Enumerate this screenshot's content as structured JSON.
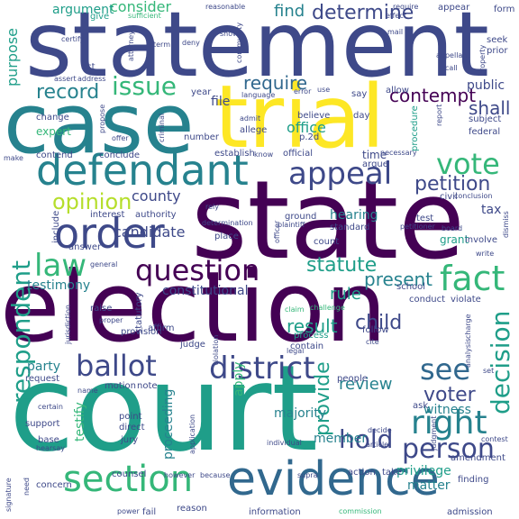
{
  "palette": {
    "dark_purple": "#440154",
    "indigo": "#3e4989",
    "blue": "#31688e",
    "teal": "#26828e",
    "green_teal": "#1f9e89",
    "green": "#35b779",
    "light_green": "#6ece58",
    "lime": "#b5de2b",
    "yellow": "#fde725"
  },
  "words": {
    "statement": "statement",
    "court": "court",
    "election": "election",
    "state": "state",
    "trial": "trial",
    "case": "case",
    "defendant": "defendant",
    "order": "order",
    "appeal": "appeal",
    "evidence": "evidence",
    "section": "section",
    "district": "district",
    "ballot": "ballot",
    "question": "question",
    "fact": "fact",
    "issue": "issue",
    "law": "law",
    "vote": "vote",
    "opinion": "opinion",
    "right": "right",
    "person": "person",
    "see": "see",
    "determine": "determine",
    "respondent": "respondent",
    "record": "record",
    "require": "require",
    "contempt": "contempt",
    "petition": "petition",
    "statute": "statute",
    "shall": "shall",
    "hold": "hold",
    "voter": "voter",
    "decision": "decision",
    "child": "child",
    "present": "present",
    "provide": "provide",
    "result": "result",
    "rule": "rule",
    "review": "review",
    "find": "find",
    "consider": "consider",
    "argument": "argument",
    "purpose": "purpose",
    "file": "file",
    "office": "office",
    "public": "public",
    "county": "county",
    "candidate": "candidate",
    "testimony": "testimony",
    "constitutional": "constitutional",
    "hearing": "hearing",
    "party": "party",
    "apply": "apply",
    "majority": "majority",
    "member": "member",
    "witness": "witness",
    "privilege": "privilege",
    "matter": "matter",
    "proceeding": "proceeding",
    "testify": "testify",
    "tax": "tax",
    "give": "give",
    "sufficient": "sufficient",
    "reasonable": "reasonable",
    "require2": "require",
    "appear": "appear",
    "effect": "effect",
    "form": "form",
    "certify": "certify",
    "attorney": "attorney",
    "deny": "deny",
    "show": "show",
    "community": "community",
    "appellant": "appellant",
    "seek": "seek",
    "prior": "prior",
    "act": "act",
    "assert": "assert",
    "address": "address",
    "language": "language",
    "error": "error",
    "use": "use",
    "say": "say",
    "allow": "allow",
    "year": "year",
    "propose": "propose",
    "criminal": "criminal",
    "admit": "admit",
    "allege": "allege",
    "believe": "believe",
    "day": "day",
    "procedure": "procedure",
    "report": "report",
    "subject": "subject",
    "federal": "federal",
    "expert": "expert",
    "change": "change",
    "contend": "contend",
    "conclude": "conclude",
    "make": "make",
    "offer": "offer",
    "number": "number",
    "establish": "establish",
    "know": "know",
    "official": "official",
    "p2d": "p.2d",
    "time": "time",
    "argue": "argue",
    "necessary": "necessary",
    "civil": "civil",
    "conclusion": "conclusion",
    "interest": "interest",
    "authority": "authority",
    "rely": "rely",
    "determination": "determination",
    "ground": "ground",
    "standard": "standard",
    "test": "test",
    "board": "board",
    "grant": "grant",
    "dismiss": "dismiss",
    "include": "include",
    "answer": "answer",
    "general": "general",
    "place": "place",
    "plaintiff": "plaintiff",
    "officer": "officer",
    "count": "count",
    "petitioner": "petitioner",
    "involve": "involve",
    "write": "write",
    "school": "school",
    "conduct": "conduct",
    "violate": "violate",
    "raise": "raise",
    "proper": "proper",
    "jurisdiction": "jurisdiction",
    "statutory": "statutory",
    "affirm": "affirm",
    "claim": "claim",
    "challenge": "challenge",
    "process": "process",
    "contain": "contain",
    "follow": "follow",
    "cite": "cite",
    "charge": "charge",
    "legal": "legal",
    "violation": "violation",
    "judge": "judge",
    "request": "request",
    "motion": "motion",
    "note": "note",
    "people": "people",
    "analysis": "analysis",
    "set": "set",
    "name": "name",
    "certain": "certain",
    "point": "point",
    "direct": "direct",
    "ask": "ask",
    "support": "support",
    "jury": "jury",
    "base": "base",
    "application": "application",
    "judgment": "judgment",
    "article": "article",
    "contest": "contest",
    "hearsay": "hearsay",
    "provision": "provision",
    "signature": "signature",
    "counsel": "counsel",
    "however": "however",
    "because": "because",
    "supra": "supra",
    "action": "action",
    "take": "take",
    "amendment": "amendment",
    "finding": "finding",
    "concern": "concern",
    "need": "need",
    "fail": "fail",
    "reason": "reason",
    "information": "information",
    "admission": "admission",
    "commission": "commission",
    "power": "power",
    "individual": "individual",
    "decide": "decide",
    "term": "term",
    "call": "call",
    "property": "property",
    "mail": "mail"
  }
}
